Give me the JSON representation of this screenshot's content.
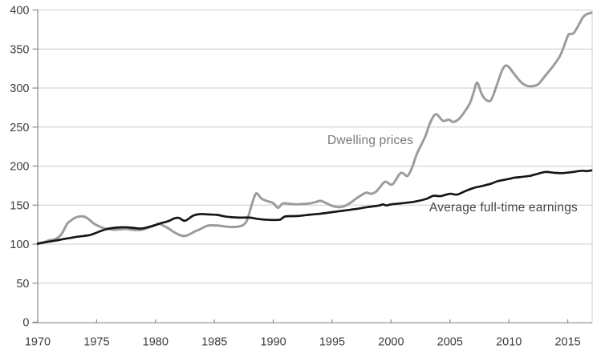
{
  "chart_data": {
    "type": "line",
    "title": "",
    "xlabel": "",
    "ylabel": "",
    "x_axis": {
      "range": [
        1970,
        2017
      ],
      "tick_years": [
        1970,
        1975,
        1980,
        1985,
        1990,
        1995,
        2000,
        2005,
        2010,
        2015
      ]
    },
    "y_axis": {
      "range": [
        0,
        400
      ],
      "tick_values": [
        0,
        50,
        100,
        150,
        200,
        250,
        300,
        350,
        400
      ]
    },
    "grid": "horizontal",
    "legend_position": "inline-labels",
    "colors": {
      "dwelling_line": "#9c9c9c",
      "earnings_line": "#161616",
      "grid": "#cccccc",
      "axis": "#8a8a8a",
      "tick_label": "#3d3d3d",
      "background": "#ffffff"
    },
    "annotations": [
      {
        "text": "Dwelling prices",
        "year": 1994.6,
        "value": 233,
        "style": "gray"
      },
      {
        "text": "Average full-time earnings",
        "year": 2003.25,
        "value": 146.5,
        "style": "dark"
      }
    ],
    "series": [
      {
        "name": "Dwelling prices",
        "color": "#9c9c9c",
        "stroke_width": 3,
        "points": [
          [
            1970,
            101
          ],
          [
            1970.5,
            102.5
          ],
          [
            1971,
            105
          ],
          [
            1971.5,
            106.5
          ],
          [
            1972,
            112.5
          ],
          [
            1972.5,
            126
          ],
          [
            1972.8,
            130
          ],
          [
            1973.2,
            134
          ],
          [
            1973.6,
            135.5
          ],
          [
            1974,
            135
          ],
          [
            1974.4,
            131
          ],
          [
            1974.8,
            126
          ],
          [
            1975.2,
            123
          ],
          [
            1975.6,
            120.5
          ],
          [
            1976,
            119.5
          ],
          [
            1976.5,
            118.5
          ],
          [
            1977,
            119
          ],
          [
            1977.5,
            119.5
          ],
          [
            1978,
            118.5
          ],
          [
            1978.5,
            118
          ],
          [
            1979,
            119
          ],
          [
            1979.5,
            121.5
          ],
          [
            1980,
            124.5
          ],
          [
            1980.3,
            126
          ],
          [
            1981,
            121
          ],
          [
            1981.5,
            116
          ],
          [
            1982,
            112
          ],
          [
            1982.4,
            110.5
          ],
          [
            1982.8,
            112
          ],
          [
            1983.3,
            116
          ],
          [
            1983.7,
            118.5
          ],
          [
            1984.4,
            123.5
          ],
          [
            1985,
            124
          ],
          [
            1985.5,
            123.5
          ],
          [
            1986,
            122.5
          ],
          [
            1986.5,
            122
          ],
          [
            1987,
            122.5
          ],
          [
            1987.5,
            125
          ],
          [
            1987.8,
            132
          ],
          [
            1988.1,
            147
          ],
          [
            1988.4,
            161
          ],
          [
            1988.6,
            165
          ],
          [
            1989,
            158.5
          ],
          [
            1989.5,
            155
          ],
          [
            1990,
            152.5
          ],
          [
            1990.4,
            146.5
          ],
          [
            1990.8,
            152
          ],
          [
            1991.5,
            151.5
          ],
          [
            1992,
            151
          ],
          [
            1992.5,
            151.5
          ],
          [
            1993,
            152
          ],
          [
            1993.5,
            153.5
          ],
          [
            1994,
            155.5
          ],
          [
            1994.5,
            152.5
          ],
          [
            1995,
            149
          ],
          [
            1995.5,
            147.5
          ],
          [
            1996,
            148.5
          ],
          [
            1996.5,
            152.5
          ],
          [
            1997,
            158
          ],
          [
            1997.5,
            163
          ],
          [
            1997.9,
            166
          ],
          [
            1998.3,
            164.5
          ],
          [
            1998.7,
            167
          ],
          [
            1999,
            172
          ],
          [
            1999.5,
            180
          ],
          [
            2000.1,
            176.5
          ],
          [
            2000.7,
            189.5
          ],
          [
            2001,
            191
          ],
          [
            2001.4,
            187.5
          ],
          [
            2001.8,
            199
          ],
          [
            2002.2,
            216
          ],
          [
            2002.9,
            238
          ],
          [
            2003.3,
            255
          ],
          [
            2003.8,
            266.5
          ],
          [
            2004.4,
            258
          ],
          [
            2004.9,
            259.5
          ],
          [
            2005.3,
            256.5
          ],
          [
            2005.8,
            261
          ],
          [
            2006.3,
            271
          ],
          [
            2006.7,
            281
          ],
          [
            2007,
            294
          ],
          [
            2007.3,
            307
          ],
          [
            2007.7,
            292
          ],
          [
            2008.1,
            284.5
          ],
          [
            2008.5,
            285
          ],
          [
            2009,
            305
          ],
          [
            2009.4,
            322
          ],
          [
            2009.7,
            328.5
          ],
          [
            2010,
            327
          ],
          [
            2010.4,
            319
          ],
          [
            2011,
            308
          ],
          [
            2011.5,
            303
          ],
          [
            2012,
            302.5
          ],
          [
            2012.5,
            305
          ],
          [
            2013.1,
            316
          ],
          [
            2013.8,
            329
          ],
          [
            2014.4,
            343
          ],
          [
            2014.9,
            363
          ],
          [
            2015.1,
            369
          ],
          [
            2015.5,
            370.5
          ],
          [
            2016,
            383
          ],
          [
            2016.3,
            391
          ],
          [
            2016.6,
            394.5
          ],
          [
            2017,
            396.5
          ]
        ]
      },
      {
        "name": "Average full-time earnings",
        "color": "#161616",
        "stroke_width": 2.7,
        "points": [
          [
            1970,
            100.5
          ],
          [
            1970.7,
            102.5
          ],
          [
            1971.5,
            104.5
          ],
          [
            1972.2,
            106.5
          ],
          [
            1972.8,
            108
          ],
          [
            1973.4,
            109.5
          ],
          [
            1973.9,
            110.5
          ],
          [
            1974.4,
            111.5
          ],
          [
            1974.8,
            113.5
          ],
          [
            1975.3,
            116.5
          ],
          [
            1975.8,
            119
          ],
          [
            1976.3,
            120.5
          ],
          [
            1977,
            121.5
          ],
          [
            1977.6,
            121.5
          ],
          [
            1978.3,
            120.5
          ],
          [
            1978.8,
            120
          ],
          [
            1979.3,
            121.5
          ],
          [
            1980,
            124.5
          ],
          [
            1980.5,
            127
          ],
          [
            1981.1,
            129.5
          ],
          [
            1981.6,
            133
          ],
          [
            1982,
            133.5
          ],
          [
            1982.5,
            130
          ],
          [
            1983.2,
            136.5
          ],
          [
            1983.8,
            138.5
          ],
          [
            1984.5,
            138
          ],
          [
            1985.2,
            137.5
          ],
          [
            1985.9,
            135.5
          ],
          [
            1986.5,
            134.5
          ],
          [
            1987.2,
            134
          ],
          [
            1988,
            134
          ],
          [
            1988.6,
            132.5
          ],
          [
            1989.2,
            131.5
          ],
          [
            1990,
            131
          ],
          [
            1990.6,
            131.5
          ],
          [
            1991,
            135.5
          ],
          [
            1992,
            136
          ],
          [
            1993,
            137.5
          ],
          [
            1994,
            139
          ],
          [
            1995,
            141
          ],
          [
            1996,
            143
          ],
          [
            1997,
            145
          ],
          [
            1998,
            147.5
          ],
          [
            1999,
            149.5
          ],
          [
            1999.3,
            151
          ],
          [
            1999.6,
            149.5
          ],
          [
            2000,
            151
          ],
          [
            2001,
            152.5
          ],
          [
            2002,
            154.5
          ],
          [
            2003,
            158
          ],
          [
            2003.6,
            162
          ],
          [
            2004.2,
            161.5
          ],
          [
            2005,
            164.5
          ],
          [
            2005.6,
            163.5
          ],
          [
            2006.3,
            168
          ],
          [
            2007,
            172
          ],
          [
            2007.7,
            174.5
          ],
          [
            2008.5,
            177.5
          ],
          [
            2009,
            180.5
          ],
          [
            2010,
            183.5
          ],
          [
            2010.4,
            185
          ],
          [
            2011,
            186
          ],
          [
            2011.8,
            187.5
          ],
          [
            2012.4,
            190
          ],
          [
            2013.1,
            192.5
          ],
          [
            2013.8,
            191.5
          ],
          [
            2014.5,
            191
          ],
          [
            2015.2,
            192
          ],
          [
            2015.9,
            193.5
          ],
          [
            2016.3,
            194
          ],
          [
            2016.6,
            193.5
          ],
          [
            2017,
            194.5
          ]
        ]
      }
    ]
  }
}
